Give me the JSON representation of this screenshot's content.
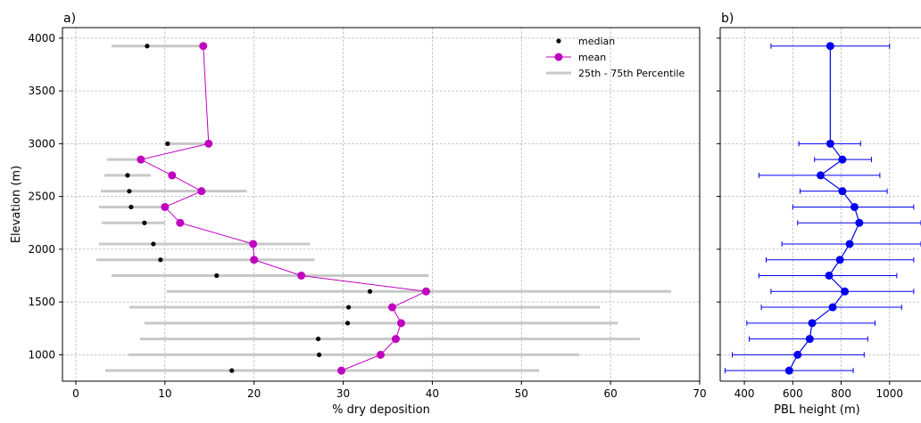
{
  "chart_data": [
    {
      "type": "scatter",
      "panel_label": "a)",
      "xlabel": "% dry deposition",
      "ylabel": "Elevation (m)",
      "xlim": [
        -1.5,
        70
      ],
      "ylim": [
        750,
        4100
      ],
      "xticks": [
        0,
        10,
        20,
        30,
        40,
        50,
        60,
        70
      ],
      "yticks": [
        1000,
        1500,
        2000,
        2500,
        3000,
        3500,
        4000
      ],
      "grid": true,
      "legend_position": "top-right",
      "legend": [
        "median",
        "mean",
        "25th - 75th Percentile"
      ],
      "colors": {
        "median": "#000000",
        "mean": "#c000c0",
        "percentile": "#c8c8c8"
      },
      "elevation": [
        3925,
        3000,
        2850,
        2700,
        2550,
        2400,
        2250,
        2050,
        1900,
        1750,
        1600,
        1450,
        1300,
        1150,
        1000,
        850
      ],
      "median": [
        8.0,
        10.3,
        null,
        5.8,
        6.0,
        6.2,
        7.7,
        8.7,
        9.5,
        15.8,
        33.0,
        30.6,
        30.5,
        27.2,
        27.3,
        17.5
      ],
      "mean": [
        14.3,
        14.9,
        7.3,
        10.8,
        14.1,
        10.0,
        11.7,
        19.9,
        20.0,
        25.3,
        39.3,
        35.5,
        36.5,
        35.9,
        34.2,
        29.8
      ],
      "p25": [
        4.0,
        10.0,
        3.5,
        3.2,
        2.8,
        2.6,
        2.9,
        2.6,
        2.3,
        4.0,
        10.2,
        6.0,
        7.7,
        7.2,
        5.9,
        3.3
      ],
      "p75": [
        14.5,
        15.0,
        7.5,
        8.4,
        19.2,
        10.2,
        10.0,
        26.3,
        26.8,
        39.6,
        66.8,
        58.8,
        60.8,
        63.3,
        56.5,
        52.0
      ]
    },
    {
      "type": "line",
      "panel_label": "b)",
      "xlabel": "PBL height (m)",
      "xlim": [
        300,
        1130
      ],
      "ylim": [
        750,
        4100
      ],
      "xticks": [
        400,
        600,
        800,
        1000
      ],
      "grid": true,
      "color": "#0000ee",
      "elevation": [
        3925,
        3000,
        2850,
        2700,
        2550,
        2400,
        2250,
        2050,
        1900,
        1750,
        1600,
        1450,
        1300,
        1150,
        1000,
        850
      ],
      "mean": [
        755,
        755,
        805,
        715,
        805,
        855,
        875,
        835,
        795,
        750,
        815,
        765,
        680,
        670,
        620,
        585
      ],
      "err_low": [
        510,
        625,
        690,
        460,
        630,
        600,
        620,
        555,
        490,
        460,
        510,
        470,
        410,
        420,
        350,
        320
      ],
      "err_high": [
        1000,
        880,
        925,
        960,
        990,
        1100,
        1130,
        1130,
        1100,
        1030,
        1100,
        1050,
        940,
        910,
        895,
        850
      ]
    }
  ]
}
